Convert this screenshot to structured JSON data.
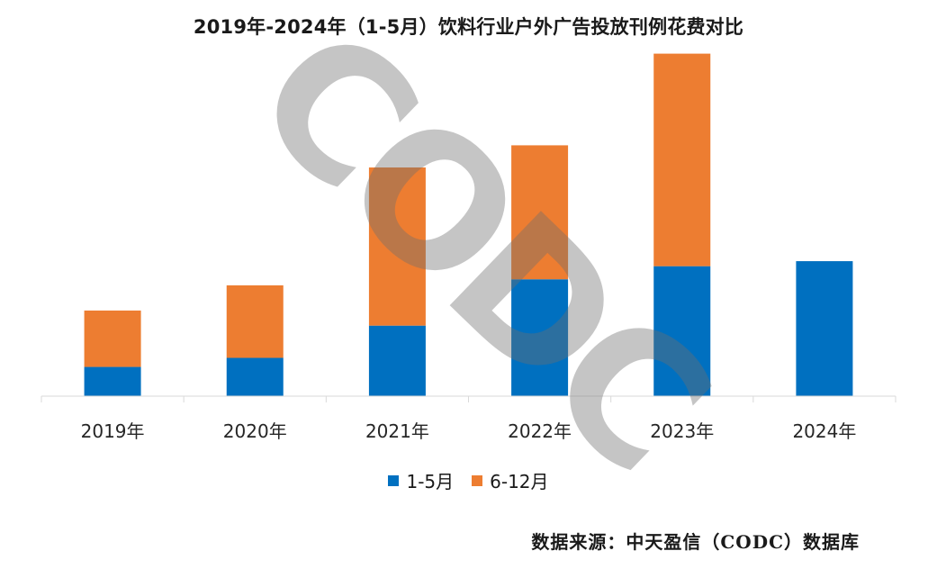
{
  "title": "2019年-2024年（1-5月）饮料行业户外广告投放刊例花费对比",
  "chart_data": {
    "type": "bar",
    "stacked": true,
    "categories": [
      "2019年",
      "2020年",
      "2021年",
      "2022年",
      "2023年",
      "2024年"
    ],
    "series": [
      {
        "name": "1-5月",
        "color": "#0070c0",
        "values": [
          29,
          38,
          70,
          116,
          129,
          134
        ]
      },
      {
        "name": "6-12月",
        "color": "#ed7d31",
        "values": [
          56,
          72,
          157,
          133,
          211,
          0
        ]
      }
    ],
    "xlabel": "",
    "ylabel": "",
    "ylim": [
      0,
      345
    ],
    "yaxis_visible": false,
    "grid": false,
    "legend": "bottom"
  },
  "watermark": "CODC",
  "source": "数据来源：中天盈信（CODC）数据库"
}
